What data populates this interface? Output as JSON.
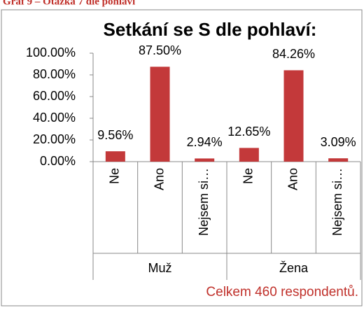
{
  "caption": "Graf 9 – Otázka 7 dle pohlaví",
  "chart_data": {
    "type": "bar",
    "title": "Setkání  se S dle pohlaví:",
    "categories": [
      "Ne",
      "Ano",
      "Nejsem si…",
      "Ne",
      "Ano",
      "Nejsem si…"
    ],
    "groups": [
      "Muž",
      "Žena"
    ],
    "values": [
      9.56,
      87.5,
      2.94,
      12.65,
      84.26,
      3.09
    ],
    "value_labels": [
      "9.56%",
      "87.50%",
      "2.94%",
      "12.65%",
      "84.26%",
      "3.09%"
    ],
    "color": "#c3393a",
    "ylim": [
      0,
      100
    ],
    "yticks": [
      {
        "value": 0,
        "label": "0.00%"
      },
      {
        "value": 20,
        "label": "20.00%"
      },
      {
        "value": 40,
        "label": "40.00%"
      },
      {
        "value": 60,
        "label": "60.00%"
      },
      {
        "value": 80,
        "label": "80.00%"
      },
      {
        "value": 100,
        "label": "100.00%"
      }
    ],
    "grid": false,
    "annotation": "Celkem 460 respondentů."
  }
}
